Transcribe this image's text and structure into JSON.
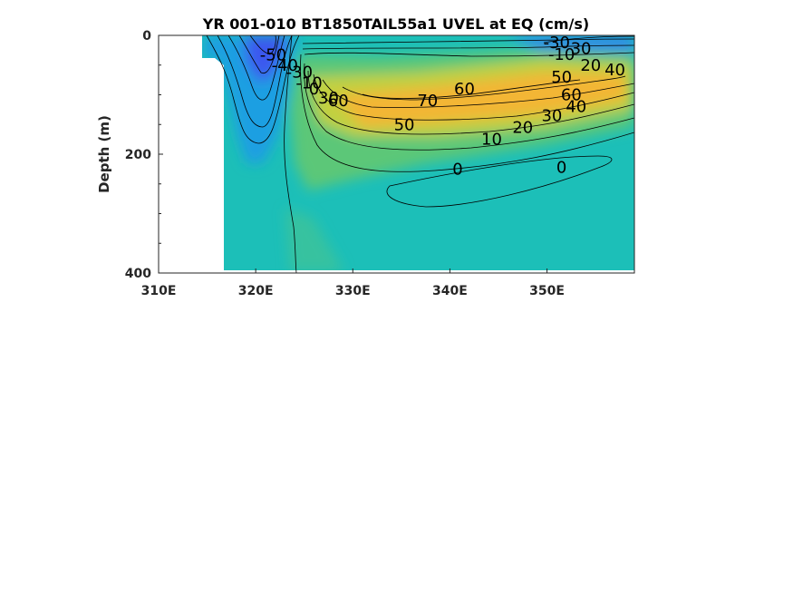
{
  "chart_data": {
    "type": "heatmap",
    "title": "YR 001-010 BT1850TAIL55a1 UVEL at EQ (cm/s)",
    "xlabel": "",
    "ylabel": "Depth (m)",
    "xlim": [
      310,
      359
    ],
    "ylim": [
      400,
      0
    ],
    "x_ticks": [
      310,
      320,
      330,
      340,
      350
    ],
    "x_tick_labels": [
      "310E",
      "320E",
      "330E",
      "340E",
      "350E"
    ],
    "y_ticks": [
      0,
      200,
      400
    ],
    "y_tick_labels": [
      "0",
      "200",
      "400"
    ],
    "y_reversed": true,
    "grid": false,
    "contour_labels": [
      {
        "text": "-50",
        "x": 321.8,
        "y": 33
      },
      {
        "text": "-40",
        "x": 323.0,
        "y": 50
      },
      {
        "text": "-30",
        "x": 324.5,
        "y": 62
      },
      {
        "text": "-10",
        "x": 325.5,
        "y": 80
      },
      {
        "text": "0",
        "x": 326.0,
        "y": 90
      },
      {
        "text": "30",
        "x": 327.5,
        "y": 105
      },
      {
        "text": "60",
        "x": 328.5,
        "y": 110
      },
      {
        "text": "70",
        "x": 337.7,
        "y": 110
      },
      {
        "text": "60",
        "x": 341.5,
        "y": 90
      },
      {
        "text": "50",
        "x": 335.3,
        "y": 150
      },
      {
        "text": "10",
        "x": 344.3,
        "y": 175
      },
      {
        "text": "20",
        "x": 347.5,
        "y": 155
      },
      {
        "text": "30",
        "x": 350.5,
        "y": 135
      },
      {
        "text": "40",
        "x": 353.0,
        "y": 120
      },
      {
        "text": "60",
        "x": 352.5,
        "y": 100
      },
      {
        "text": "50",
        "x": 351.5,
        "y": 70
      },
      {
        "text": "0",
        "x": 340.8,
        "y": 225
      },
      {
        "text": "0",
        "x": 351.5,
        "y": 222
      },
      {
        "text": "-30",
        "x": 351.0,
        "y": 12
      },
      {
        "text": "-10",
        "x": 351.5,
        "y": 32
      },
      {
        "text": "30",
        "x": 353.5,
        "y": 22
      },
      {
        "text": "20",
        "x": 354.5,
        "y": 50
      },
      {
        "text": "40",
        "x": 357.0,
        "y": 58
      }
    ],
    "colors": {
      "strong_westward": "#3b5bf0",
      "westward": "#1aa0e0",
      "zero": "#1cbfb8",
      "eastward_weak": "#7fcf5a",
      "eastward": "#e8c030",
      "core": "#f6b233",
      "land": "#ffffff"
    }
  }
}
